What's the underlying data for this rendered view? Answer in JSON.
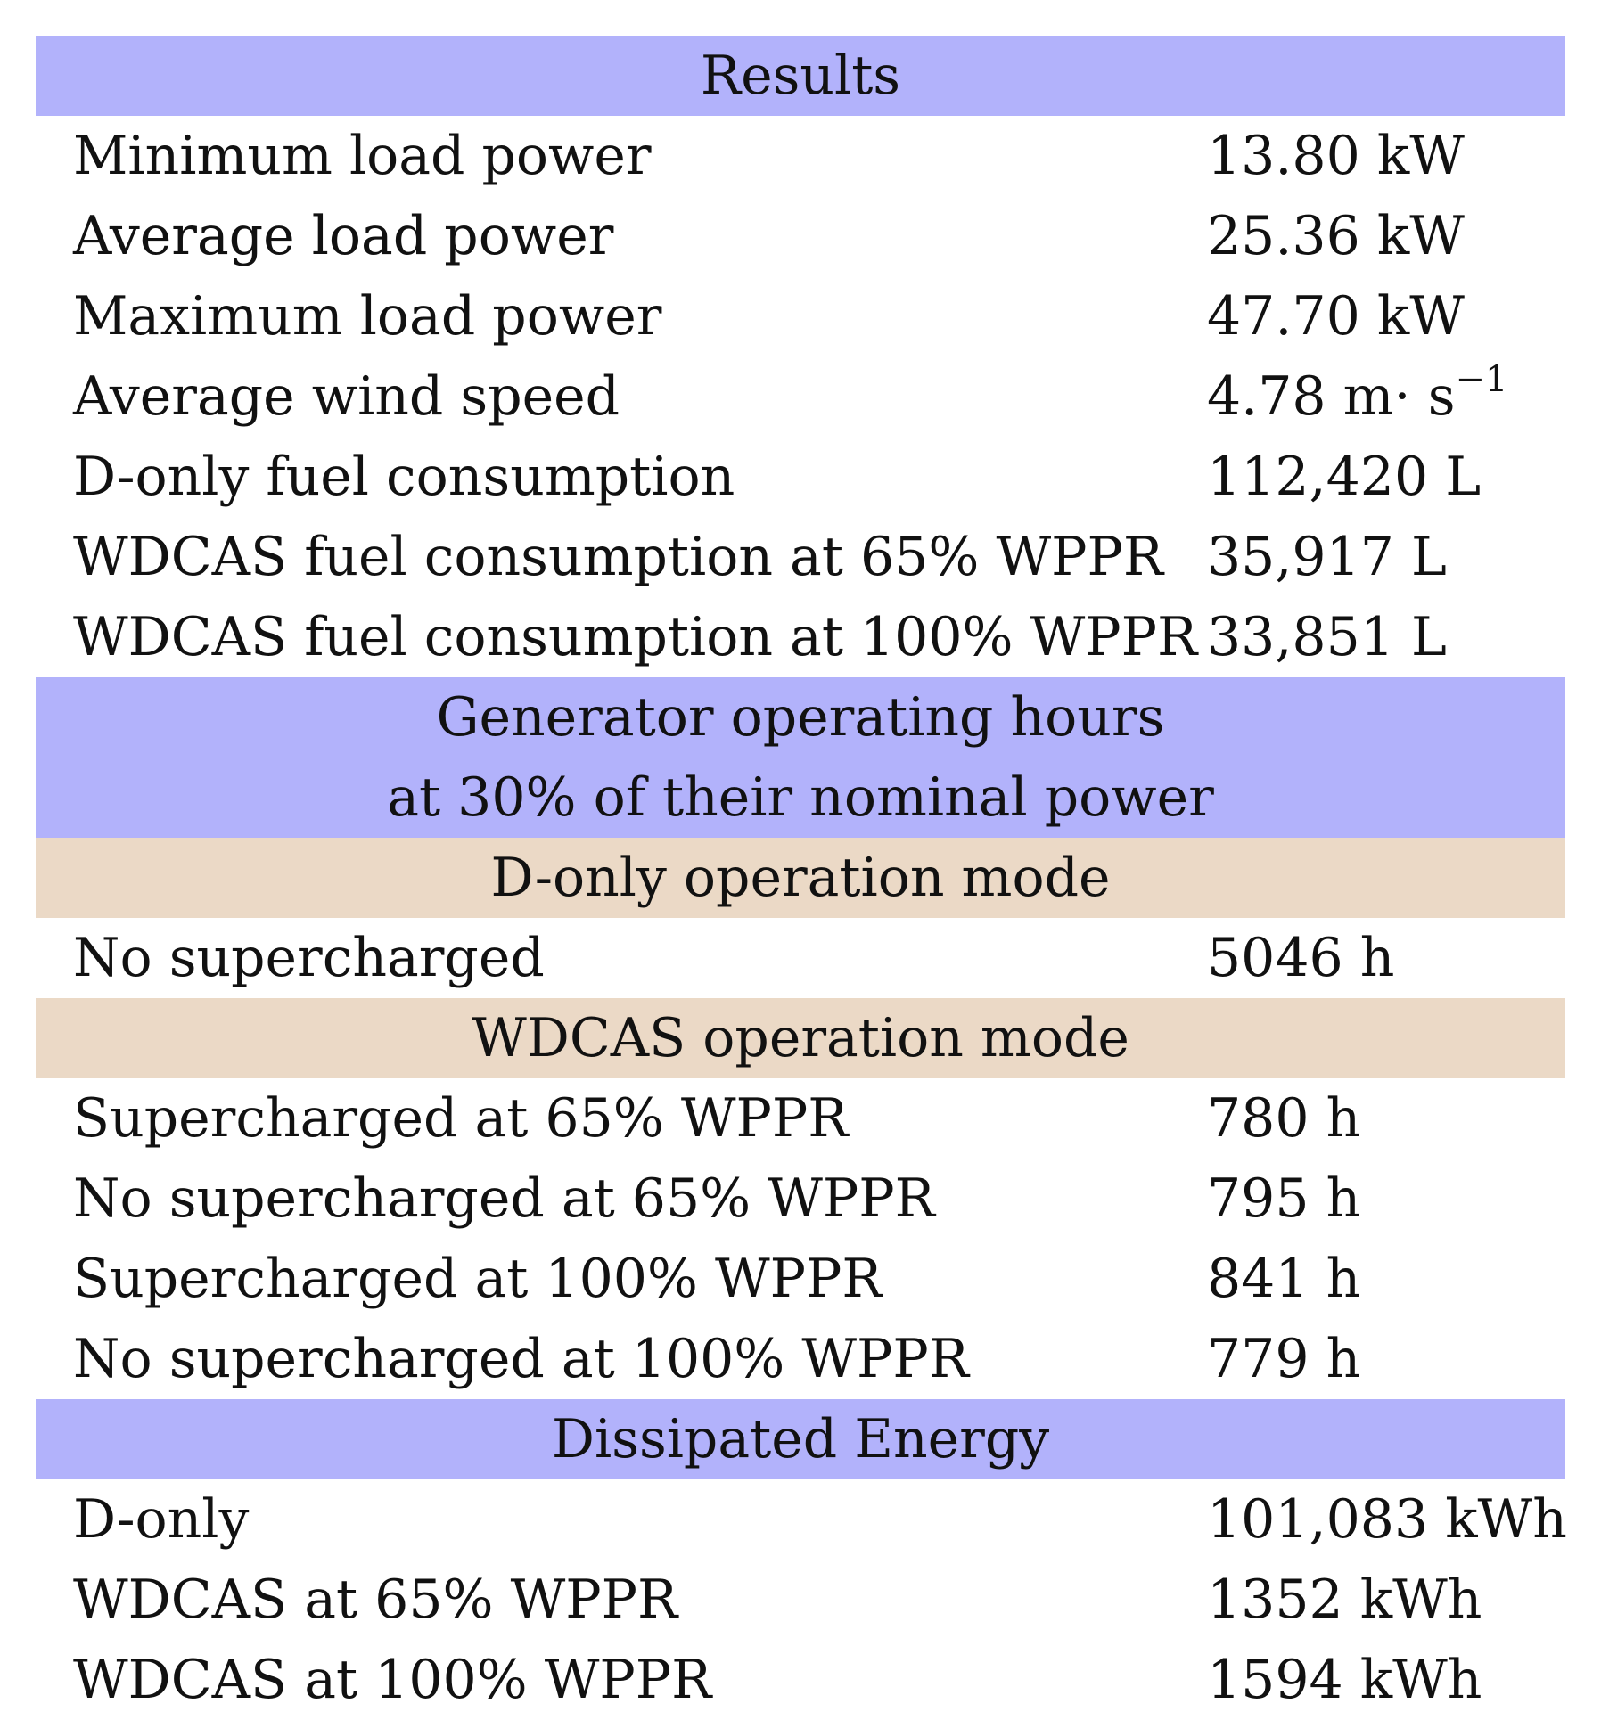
{
  "sections": {
    "results": {
      "title": "Results",
      "rows": [
        {
          "label": "Minimum load power",
          "value": "13.80 kW"
        },
        {
          "label": "Average load power",
          "value": "25.36 kW"
        },
        {
          "label": "Maximum load power",
          "value": "47.70 kW"
        },
        {
          "label": "Average wind speed",
          "value": "4.78 m· s",
          "value_sup": "−1"
        },
        {
          "label": "D-only fuel consumption",
          "value": "112,420 L"
        },
        {
          "label": "WDCAS fuel consumption at 65% WPPR",
          "value": "35,917 L"
        },
        {
          "label": "WDCAS fuel consumption at 100% WPPR",
          "value": "33,851 L"
        }
      ]
    },
    "generator": {
      "title_line1": "Generator operating hours",
      "title_line2": "at 30% of their nominal power",
      "d_only": {
        "title": "D-only operation mode",
        "rows": [
          {
            "label": "No supercharged",
            "value": "5046 h"
          }
        ]
      },
      "wdcas": {
        "title": "WDCAS operation mode",
        "rows": [
          {
            "label": "Supercharged at 65% WPPR",
            "value": "780 h"
          },
          {
            "label": "No supercharged at 65% WPPR",
            "value": "795 h"
          },
          {
            "label": "Supercharged at 100% WPPR",
            "value": "841 h"
          },
          {
            "label": "No supercharged at 100% WPPR",
            "value": "779 h"
          }
        ]
      }
    },
    "dissipated": {
      "title": "Dissipated Energy",
      "rows": [
        {
          "label": "D-only",
          "value": "101,083 kWh"
        },
        {
          "label": "WDCAS at 65% WPPR",
          "value": "1352 kWh"
        },
        {
          "label": "WDCAS at 100% WPPR",
          "value": "1594 kWh"
        }
      ]
    }
  },
  "colors": {
    "section_header_bg": "#b2b2fb",
    "subsection_header_bg": "#ebd9c6"
  }
}
